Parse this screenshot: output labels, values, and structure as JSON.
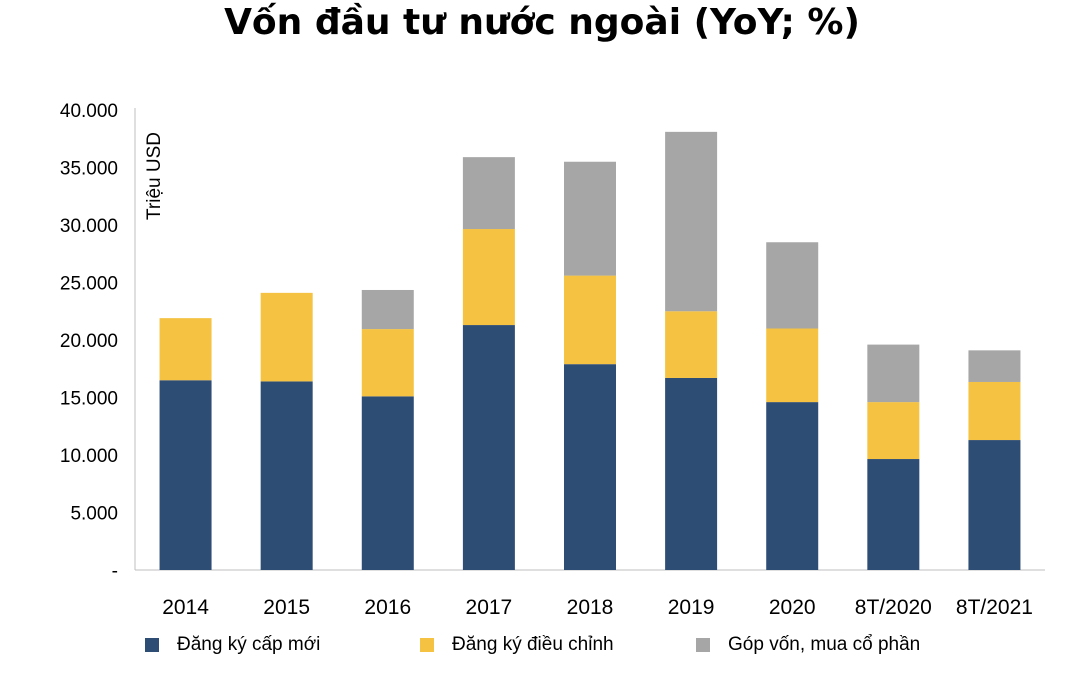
{
  "chart_data": {
    "type": "bar",
    "stacked": true,
    "title": "Vốn đầu tư nước ngoài (YoY; %)",
    "ylabel": "Triệu USD",
    "xlabel": "",
    "ylim": [
      0,
      40000
    ],
    "yticks": [
      "-",
      "5.000",
      "10.000",
      "15.000",
      "20.000",
      "25.000",
      "30.000",
      "35.000",
      "40.000"
    ],
    "ytick_values": [
      0,
      5000,
      10000,
      15000,
      20000,
      25000,
      30000,
      35000,
      40000
    ],
    "grid": false,
    "legend_position": "bottom",
    "categories": [
      "2014",
      "2015",
      "2016",
      "2017",
      "2018",
      "2019",
      "2020",
      "8T/2020",
      "8T/2021"
    ],
    "series": [
      {
        "name": "Đăng ký cấp mới",
        "color": "#2e4d75",
        "values": [
          16500,
          16400,
          15100,
          21300,
          17900,
          16700,
          14600,
          9650,
          11300
        ]
      },
      {
        "name": "Đăng ký điều chỉnh",
        "color": "#f5c242",
        "values": [
          5400,
          7700,
          5850,
          8350,
          7700,
          5800,
          6400,
          4950,
          5050
        ]
      },
      {
        "name": "Góp vốn, mua cổ phần",
        "color": "#a6a6a6",
        "values": [
          0,
          0,
          3400,
          6250,
          9900,
          15600,
          7500,
          5000,
          2750
        ]
      }
    ]
  }
}
